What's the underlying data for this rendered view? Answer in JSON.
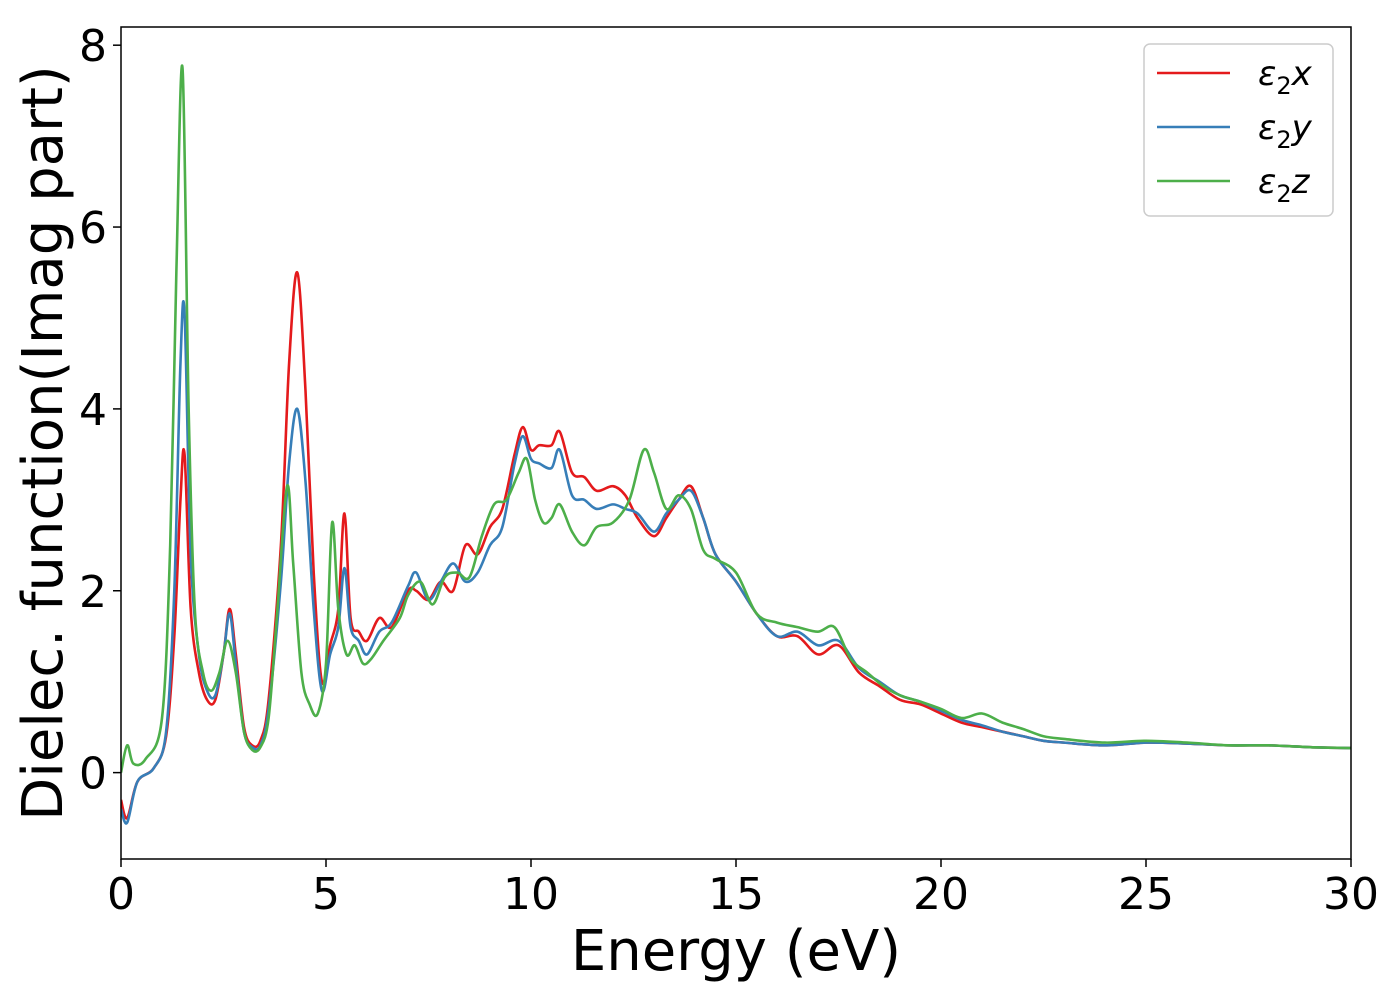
{
  "chart_data": {
    "type": "line",
    "xlabel": "Energy (eV)",
    "ylabel": "Dielec. function(Imag part)",
    "xlim": [
      0,
      30
    ],
    "ylim": [
      -0.95,
      8.2
    ],
    "xticks": [
      "0",
      "5",
      "10",
      "15",
      "20",
      "25",
      "30"
    ],
    "yticks": [
      "0",
      "2",
      "4",
      "6",
      "8"
    ],
    "grid": false,
    "legend_position": "top-right",
    "series": [
      {
        "name": "ε₂x",
        "legend_main": "ε",
        "legend_sub": "2",
        "legend_tail": "x",
        "color": "#e41a1c",
        "x": [
          0,
          0.15,
          0.4,
          0.8,
          1.1,
          1.3,
          1.45,
          1.55,
          1.7,
          1.9,
          2.1,
          2.3,
          2.5,
          2.65,
          2.8,
          3.0,
          3.2,
          3.4,
          3.6,
          3.9,
          4.1,
          4.3,
          4.5,
          4.7,
          4.9,
          5.1,
          5.3,
          5.45,
          5.6,
          5.8,
          6.0,
          6.3,
          6.6,
          7.0,
          7.2,
          7.5,
          7.8,
          8.1,
          8.4,
          8.7,
          9.0,
          9.3,
          9.6,
          9.8,
          10.0,
          10.2,
          10.5,
          10.7,
          11.0,
          11.3,
          11.6,
          12.0,
          12.3,
          12.6,
          13.0,
          13.3,
          13.6,
          13.9,
          14.2,
          14.5,
          15.0,
          15.5,
          16.0,
          16.5,
          17.0,
          17.5,
          18.0,
          18.5,
          19.0,
          19.5,
          20.0,
          20.5,
          21.0,
          21.5,
          22.0,
          22.5,
          23.0,
          24.0,
          25.0,
          26.0,
          27.0,
          28.0,
          29.0,
          30.0
        ],
        "values": [
          -0.3,
          -0.5,
          -0.1,
          0.05,
          0.4,
          1.5,
          3.0,
          3.5,
          1.8,
          1.1,
          0.8,
          0.8,
          1.3,
          1.8,
          1.3,
          0.5,
          0.3,
          0.35,
          0.8,
          2.5,
          4.5,
          5.5,
          4.2,
          2.2,
          1.0,
          1.4,
          1.8,
          2.85,
          1.7,
          1.55,
          1.45,
          1.7,
          1.6,
          2.0,
          2.0,
          1.9,
          2.1,
          2.0,
          2.5,
          2.4,
          2.7,
          2.9,
          3.5,
          3.8,
          3.55,
          3.6,
          3.6,
          3.75,
          3.3,
          3.25,
          3.1,
          3.15,
          3.05,
          2.8,
          2.6,
          2.8,
          3.0,
          3.15,
          2.8,
          2.4,
          2.1,
          1.75,
          1.5,
          1.5,
          1.3,
          1.4,
          1.1,
          0.95,
          0.8,
          0.75,
          0.65,
          0.55,
          0.5,
          0.45,
          0.4,
          0.35,
          0.33,
          0.3,
          0.33,
          0.32,
          0.3,
          0.3,
          0.28,
          0.27
        ]
      },
      {
        "name": "ε₂y",
        "legend_main": "ε",
        "legend_sub": "2",
        "legend_tail": "y",
        "color": "#377eb8",
        "x": [
          0,
          0.15,
          0.4,
          0.8,
          1.1,
          1.3,
          1.45,
          1.55,
          1.7,
          1.9,
          2.1,
          2.3,
          2.5,
          2.65,
          2.8,
          3.0,
          3.2,
          3.4,
          3.6,
          3.9,
          4.1,
          4.3,
          4.5,
          4.7,
          4.9,
          5.1,
          5.3,
          5.45,
          5.6,
          5.8,
          6.0,
          6.3,
          6.6,
          7.0,
          7.2,
          7.5,
          7.8,
          8.1,
          8.4,
          8.7,
          9.0,
          9.3,
          9.6,
          9.8,
          10.0,
          10.2,
          10.5,
          10.7,
          11.0,
          11.3,
          11.6,
          12.0,
          12.3,
          12.6,
          13.0,
          13.3,
          13.6,
          13.9,
          14.2,
          14.5,
          15.0,
          15.5,
          16.0,
          16.5,
          17.0,
          17.5,
          18.0,
          18.5,
          19.0,
          19.5,
          20.0,
          20.5,
          21.0,
          21.5,
          22.0,
          22.5,
          23.0,
          24.0,
          25.0,
          26.0,
          27.0,
          28.0,
          29.0,
          30.0
        ],
        "values": [
          -0.4,
          -0.55,
          -0.1,
          0.05,
          0.45,
          2.0,
          4.5,
          5.05,
          2.4,
          1.3,
          0.9,
          0.85,
          1.3,
          1.75,
          1.2,
          0.45,
          0.28,
          0.3,
          0.7,
          2.1,
          3.4,
          4.0,
          3.2,
          1.8,
          0.9,
          1.3,
          1.6,
          2.25,
          1.6,
          1.45,
          1.3,
          1.55,
          1.65,
          2.05,
          2.2,
          1.9,
          2.1,
          2.3,
          2.1,
          2.2,
          2.5,
          2.7,
          3.4,
          3.7,
          3.45,
          3.4,
          3.35,
          3.55,
          3.05,
          3.0,
          2.9,
          2.95,
          2.9,
          2.85,
          2.65,
          2.85,
          3.0,
          3.1,
          2.8,
          2.4,
          2.1,
          1.75,
          1.5,
          1.55,
          1.4,
          1.45,
          1.15,
          1.0,
          0.85,
          0.78,
          0.68,
          0.58,
          0.52,
          0.45,
          0.4,
          0.35,
          0.33,
          0.3,
          0.33,
          0.32,
          0.3,
          0.3,
          0.28,
          0.27
        ]
      },
      {
        "name": "ε₂z",
        "legend_main": "ε",
        "legend_sub": "2",
        "legend_tail": "z",
        "color": "#4daf4a",
        "x": [
          0,
          0.15,
          0.3,
          0.6,
          1.0,
          1.2,
          1.35,
          1.5,
          1.65,
          1.8,
          2.0,
          2.2,
          2.4,
          2.6,
          2.8,
          3.0,
          3.2,
          3.4,
          3.6,
          3.8,
          4.05,
          4.2,
          4.4,
          4.6,
          4.8,
          5.0,
          5.15,
          5.3,
          5.5,
          5.7,
          5.9,
          6.1,
          6.4,
          6.8,
          7.0,
          7.3,
          7.6,
          7.9,
          8.2,
          8.5,
          8.8,
          9.1,
          9.4,
          9.7,
          9.9,
          10.1,
          10.3,
          10.5,
          10.7,
          11.0,
          11.3,
          11.6,
          12.0,
          12.4,
          12.75,
          13.0,
          13.3,
          13.6,
          13.9,
          14.2,
          14.5,
          15.0,
          15.5,
          16.0,
          16.5,
          17.0,
          17.4,
          17.8,
          18.2,
          18.6,
          19.0,
          19.5,
          20.0,
          20.5,
          21.0,
          21.5,
          22.0,
          22.5,
          23.0,
          24.0,
          25.0,
          26.0,
          27.0,
          28.0,
          29.0,
          30.0
        ],
        "values": [
          0.0,
          0.3,
          0.1,
          0.15,
          0.6,
          2.5,
          5.5,
          7.75,
          4.0,
          1.8,
          1.1,
          0.9,
          1.1,
          1.45,
          1.1,
          0.45,
          0.25,
          0.28,
          0.6,
          1.7,
          3.15,
          2.3,
          1.1,
          0.75,
          0.65,
          1.2,
          2.75,
          1.8,
          1.3,
          1.4,
          1.2,
          1.25,
          1.45,
          1.7,
          1.95,
          2.1,
          1.85,
          2.15,
          2.2,
          2.15,
          2.6,
          2.95,
          3.0,
          3.3,
          3.45,
          3.0,
          2.75,
          2.8,
          2.95,
          2.65,
          2.5,
          2.7,
          2.75,
          3.0,
          3.55,
          3.3,
          2.9,
          3.05,
          2.9,
          2.45,
          2.35,
          2.2,
          1.75,
          1.65,
          1.6,
          1.55,
          1.6,
          1.25,
          1.1,
          0.95,
          0.85,
          0.78,
          0.7,
          0.6,
          0.65,
          0.55,
          0.48,
          0.4,
          0.37,
          0.33,
          0.35,
          0.33,
          0.3,
          0.3,
          0.28,
          0.27
        ]
      }
    ]
  }
}
